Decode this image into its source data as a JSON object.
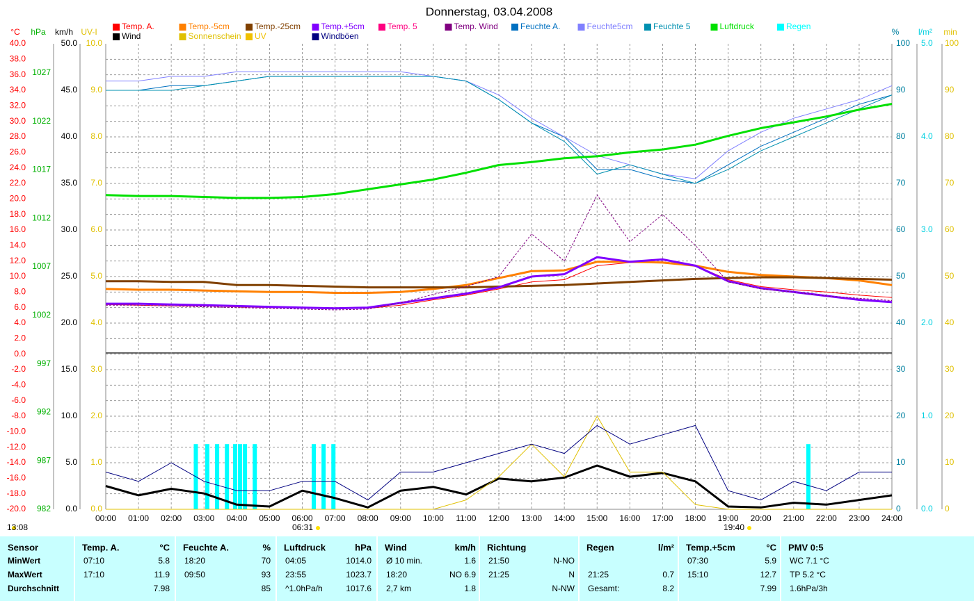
{
  "chart_data": {
    "type": "line",
    "title": "Donnerstag, 03.04.2008",
    "grid": true,
    "annotations": [
      "13:08",
      "06:31",
      "19:40"
    ],
    "x": [
      0,
      1,
      2,
      3,
      4,
      5,
      6,
      7,
      8,
      9,
      10,
      11,
      12,
      13,
      14,
      15,
      16,
      17,
      18,
      19,
      20,
      21,
      22,
      23,
      24
    ],
    "xlim": [
      0,
      24
    ],
    "xticks": [
      {
        "value": 0,
        "label": "00:00"
      },
      {
        "value": 1,
        "label": "01:00"
      },
      {
        "value": 2,
        "label": "02:00"
      },
      {
        "value": 3,
        "label": "03:00"
      },
      {
        "value": 4,
        "label": "04:00"
      },
      {
        "value": 5,
        "label": "05:00"
      },
      {
        "value": 6,
        "label": "06:00"
      },
      {
        "value": 7,
        "label": "07:00"
      },
      {
        "value": 8,
        "label": "08:00"
      },
      {
        "value": 9,
        "label": "09:00"
      },
      {
        "value": 10,
        "label": "10:00"
      },
      {
        "value": 11,
        "label": "11:00"
      },
      {
        "value": 12,
        "label": "12:00"
      },
      {
        "value": 13,
        "label": "13:00"
      },
      {
        "value": 14,
        "label": "14:00"
      },
      {
        "value": 15,
        "label": "15:00"
      },
      {
        "value": 16,
        "label": "16:00"
      },
      {
        "value": 17,
        "label": "17:00"
      },
      {
        "value": 18,
        "label": "18:00"
      },
      {
        "value": 19,
        "label": "19:00"
      },
      {
        "value": 20,
        "label": "20:00"
      },
      {
        "value": 21,
        "label": "21:00"
      },
      {
        "value": 22,
        "label": "22:00"
      },
      {
        "value": 23,
        "label": "23:00"
      },
      {
        "value": 24,
        "label": "24:00"
      }
    ],
    "axes": [
      {
        "label": "°C",
        "color": "#ff0000",
        "lim": [
          -20,
          40
        ],
        "ticks": [
          {
            "value": -20,
            "label": "-20.0"
          },
          {
            "value": -18,
            "label": "-18.0"
          },
          {
            "value": -16,
            "label": "-16.0"
          },
          {
            "value": -14,
            "label": "-14.0"
          },
          {
            "value": -12,
            "label": "-12.0"
          },
          {
            "value": -10,
            "label": "-10.0"
          },
          {
            "value": -8,
            "label": "-8.0"
          },
          {
            "value": -6,
            "label": "-6.0"
          },
          {
            "value": -4,
            "label": "-4.0"
          },
          {
            "value": -2,
            "label": "-2.0"
          },
          {
            "value": 0,
            "label": "0.0"
          },
          {
            "value": 2,
            "label": "2.0"
          },
          {
            "value": 4,
            "label": "4.0"
          },
          {
            "value": 6,
            "label": "6.0"
          },
          {
            "value": 8,
            "label": "8.0"
          },
          {
            "value": 10,
            "label": "10.0"
          },
          {
            "value": 12,
            "label": "12.0"
          },
          {
            "value": 14,
            "label": "14.0"
          },
          {
            "value": 16,
            "label": "16.0"
          },
          {
            "value": 18,
            "label": "18.0"
          },
          {
            "value": 20,
            "label": "20.0"
          },
          {
            "value": 22,
            "label": "22.0"
          },
          {
            "value": 24,
            "label": "24.0"
          },
          {
            "value": 26,
            "label": "26.0"
          },
          {
            "value": 28,
            "label": "28.0"
          },
          {
            "value": 30,
            "label": "30.0"
          },
          {
            "value": 32,
            "label": "32.0"
          },
          {
            "value": 34,
            "label": "34.0"
          },
          {
            "value": 36,
            "label": "36.0"
          },
          {
            "value": 38,
            "label": "38.0"
          },
          {
            "value": 40,
            "label": "40.0"
          }
        ]
      },
      {
        "label": "hPa",
        "color": "#00b000",
        "lim": [
          982,
          1030
        ],
        "ticks": [
          982,
          987,
          992,
          997,
          1002,
          1007,
          1012,
          1017,
          1022,
          1027
        ]
      },
      {
        "label": "km/h",
        "color": "#000000",
        "lim": [
          0,
          50
        ],
        "ticks": [
          {
            "value": 0,
            "label": "0.0"
          },
          {
            "value": 5,
            "label": "5.0"
          },
          {
            "value": 10,
            "label": "10.0"
          },
          {
            "value": 15,
            "label": "15.0"
          },
          {
            "value": 20,
            "label": "20.0"
          },
          {
            "value": 25,
            "label": "25.0"
          },
          {
            "value": 30,
            "label": "30.0"
          },
          {
            "value": 35,
            "label": "35.0"
          },
          {
            "value": 40,
            "label": "40.0"
          },
          {
            "value": 45,
            "label": "45.0"
          },
          {
            "value": 50,
            "label": "50.0"
          }
        ]
      },
      {
        "label": "UV-I",
        "color": "#e0c000",
        "lim": [
          0,
          10
        ],
        "ticks": [
          {
            "value": 0,
            "label": "0.0"
          },
          {
            "value": 1,
            "label": "1.0"
          },
          {
            "value": 2,
            "label": "2.0"
          },
          {
            "value": 3,
            "label": "3.0"
          },
          {
            "value": 4,
            "label": "4.0"
          },
          {
            "value": 5,
            "label": "5.0"
          },
          {
            "value": 6,
            "label": "6.0"
          },
          {
            "value": 7,
            "label": "7.0"
          },
          {
            "value": 8,
            "label": "8.0"
          },
          {
            "value": 9,
            "label": "9.0"
          },
          {
            "value": 10,
            "label": "10.0"
          }
        ]
      },
      {
        "label": "%",
        "color": "#0080a0",
        "lim": [
          0,
          100
        ],
        "ticks": [
          0,
          10,
          20,
          30,
          40,
          50,
          60,
          70,
          80,
          90,
          100
        ]
      },
      {
        "label": "l/m²",
        "color": "#00d0e0",
        "lim": [
          0,
          5
        ],
        "ticks": [
          {
            "value": 0,
            "label": "0.0"
          },
          {
            "value": 1,
            "label": "1.0"
          },
          {
            "value": 2,
            "label": "2.0"
          },
          {
            "value": 3,
            "label": "3.0"
          },
          {
            "value": 4,
            "label": "4.0"
          },
          {
            "value": 5,
            "label": "5.0"
          }
        ]
      },
      {
        "label": "min",
        "color": "#e0c000",
        "lim": [
          0,
          100
        ],
        "ticks": [
          0,
          10,
          20,
          30,
          40,
          50,
          60,
          70,
          80,
          90,
          100
        ]
      }
    ],
    "series": [
      {
        "name": "Temp. A.",
        "color": "#ff0000",
        "axis": 0,
        "style": "line",
        "values": [
          6.4,
          6.3,
          6.2,
          6.2,
          6.1,
          6.0,
          6.0,
          5.9,
          5.9,
          6.3,
          7.0,
          7.6,
          8.4,
          9.3,
          9.6,
          11.4,
          11.8,
          11.9,
          11.4,
          9.6,
          8.7,
          8.3,
          8.0,
          7.6,
          7.3
        ]
      },
      {
        "name": "Temp.-5cm",
        "color": "#ff8000",
        "axis": 0,
        "style": "thick",
        "values": [
          8.4,
          8.3,
          8.3,
          8.2,
          8.1,
          8.0,
          8.0,
          7.9,
          7.9,
          8.0,
          8.4,
          8.9,
          9.8,
          10.7,
          10.8,
          11.9,
          11.9,
          11.8,
          11.4,
          10.6,
          10.2,
          10.0,
          9.8,
          9.5,
          8.9
        ]
      },
      {
        "name": "Temp.-25cm",
        "color": "#804000",
        "axis": 0,
        "style": "thick",
        "values": [
          9.4,
          9.4,
          9.3,
          9.3,
          8.9,
          8.9,
          8.8,
          8.7,
          8.6,
          8.6,
          8.6,
          8.6,
          8.7,
          8.8,
          8.9,
          9.1,
          9.3,
          9.5,
          9.7,
          9.8,
          9.9,
          9.9,
          9.8,
          9.7,
          9.6
        ]
      },
      {
        "name": "Temp.+5cm",
        "color": "#8000ff",
        "axis": 0,
        "style": "thick",
        "values": [
          6.5,
          6.5,
          6.4,
          6.3,
          6.2,
          6.1,
          6.0,
          5.9,
          6.0,
          6.6,
          7.2,
          7.8,
          8.6,
          10.0,
          10.3,
          12.5,
          11.9,
          12.2,
          11.4,
          9.4,
          8.5,
          8.0,
          7.5,
          7.0,
          6.7
        ]
      },
      {
        "name": "Temp. 5",
        "color": "#ff0080",
        "axis": 0,
        "style": "line",
        "values": [
          null,
          null,
          null,
          null,
          null,
          null,
          null,
          null,
          null,
          null,
          null,
          null,
          null,
          null,
          null,
          null,
          null,
          null,
          null,
          null,
          null,
          null,
          null,
          null,
          null
        ]
      },
      {
        "name": "Temp. Wind",
        "color": "#800080",
        "axis": 0,
        "style": "dashed",
        "values": [
          6.3,
          6.3,
          6.2,
          6.1,
          6.0,
          5.9,
          5.8,
          5.7,
          5.8,
          6.6,
          7.7,
          8.7,
          10.0,
          15.5,
          12.0,
          20.5,
          14.5,
          18.0,
          14.0,
          9.3,
          8.4,
          8.0,
          7.5,
          7.2,
          6.9
        ]
      },
      {
        "name": "Feuchte A.",
        "color": "#0070c0",
        "axis": 4,
        "style": "line",
        "values": [
          90,
          90,
          91,
          91,
          92,
          93,
          93,
          93,
          93,
          93,
          93,
          92,
          88,
          83,
          80,
          73,
          73,
          71,
          70,
          74,
          78,
          81,
          84,
          87,
          89
        ]
      },
      {
        "name": "Feuchte5cm",
        "color": "#8080ff",
        "axis": 4,
        "style": "line",
        "values": [
          92,
          92,
          93,
          93,
          94,
          94,
          94,
          94,
          94,
          94,
          93,
          92,
          89,
          84,
          80,
          76,
          74,
          72,
          71,
          77,
          81,
          84,
          86,
          88,
          91
        ]
      },
      {
        "name": "Feuchte 5",
        "color": "#0090b0",
        "axis": 4,
        "style": "line",
        "values": [
          90,
          90,
          90,
          91,
          92,
          93,
          93,
          93,
          93,
          93,
          93,
          92,
          88,
          83,
          79,
          72,
          74,
          72,
          70,
          73,
          77,
          80,
          83,
          86,
          89
        ]
      },
      {
        "name": "Luftdruck",
        "color": "#00e000",
        "axis": 1,
        "style": "thick",
        "values": [
          1014.4,
          1014.3,
          1014.3,
          1014.2,
          1014.1,
          1014.1,
          1014.2,
          1014.5,
          1015.0,
          1015.5,
          1016.0,
          1016.7,
          1017.5,
          1017.8,
          1018.2,
          1018.4,
          1018.8,
          1019.1,
          1019.6,
          1020.5,
          1021.3,
          1021.9,
          1022.5,
          1023.2,
          1023.8
        ]
      },
      {
        "name": "Regen",
        "color": "#00ffff",
        "axis": 5,
        "style": "bars",
        "x": [
          2.75,
          3.1,
          3.4,
          3.7,
          3.95,
          4.1,
          4.25,
          4.55,
          6.35,
          6.65,
          6.95,
          21.45
        ],
        "values": [
          0.7,
          0.7,
          0.7,
          0.7,
          0.7,
          0.7,
          0.7,
          0.7,
          0.7,
          0.7,
          0.7,
          0.7
        ]
      },
      {
        "name": "Wind",
        "color": "#000000",
        "axis": 2,
        "style": "thick",
        "values": [
          2.5,
          1.5,
          2.2,
          1.7,
          0.5,
          0.3,
          2.0,
          1.2,
          0.2,
          2.0,
          2.4,
          1.6,
          3.3,
          3.0,
          3.4,
          4.7,
          3.5,
          3.9,
          3.0,
          0.3,
          0.2,
          0.7,
          0.5,
          1.0,
          1.5
        ]
      },
      {
        "name": "Sonnenschein",
        "color": "#e0c000",
        "axis": 6,
        "style": "line",
        "values": [
          0,
          0,
          0,
          0,
          0,
          0,
          0,
          0,
          0,
          0,
          0,
          2,
          7,
          14,
          7,
          20,
          8,
          8,
          1,
          0,
          0,
          0,
          0,
          0,
          0
        ]
      },
      {
        "name": "UV",
        "color": "#f0c000",
        "axis": 3,
        "style": "line",
        "values": [
          null,
          null,
          null,
          null,
          null,
          null,
          null,
          null,
          null,
          null,
          null,
          null,
          null,
          null,
          null,
          null,
          null,
          null,
          null,
          null,
          null,
          null,
          null,
          null,
          null
        ]
      },
      {
        "name": "Windböen",
        "color": "#000080",
        "axis": 2,
        "style": "line",
        "values": [
          4,
          3,
          5,
          3,
          2,
          2,
          3,
          3,
          1,
          4,
          4,
          5,
          6,
          7,
          6,
          9,
          7,
          8,
          9,
          2,
          1,
          3,
          2,
          4,
          4
        ]
      }
    ]
  },
  "table": {
    "columns": [
      {
        "title": "Sensor"
      },
      {
        "title": "Temp. A.",
        "unit": "°C"
      },
      {
        "title": "Feuchte A.",
        "unit": "%"
      },
      {
        "title": "Luftdruck",
        "unit": "hPa"
      },
      {
        "title": "Wind",
        "unit": "km/h"
      },
      {
        "title": "Richtung"
      },
      {
        "title": "Regen",
        "unit": "l/m²"
      },
      {
        "title": "Temp.+5cm",
        "unit": "°C"
      },
      {
        "title": "PMV 0:5"
      }
    ],
    "rows": [
      {
        "label": "MinWert",
        "cells": [
          [
            "07:10",
            "5.8"
          ],
          [
            "18:20",
            "70"
          ],
          [
            "04:05",
            "1014.0"
          ],
          [
            "Ø 10 min.",
            "1.6"
          ],
          [
            "21:50",
            "N-NO"
          ],
          [
            null,
            null
          ],
          [
            "07:30",
            "5.9"
          ],
          [
            "WC 7.1 °C",
            null
          ]
        ]
      },
      {
        "label": "MaxWert",
        "cells": [
          [
            "17:10",
            "11.9"
          ],
          [
            "09:50",
            "93"
          ],
          [
            "23:55",
            "1023.7"
          ],
          [
            "18:20",
            "NO 6.9"
          ],
          [
            "21:25",
            "N"
          ],
          [
            "21:25",
            "0.7"
          ],
          [
            "15:10",
            "12.7"
          ],
          [
            "TP 5.2 °C",
            null
          ]
        ]
      },
      {
        "label": "Durchschnitt",
        "cells": [
          [
            null,
            "7.98"
          ],
          [
            null,
            "85"
          ],
          [
            "^1.0hPa/h",
            "1017.6"
          ],
          [
            "2,7 km",
            "1.8"
          ],
          [
            null,
            "N-NW"
          ],
          [
            "Gesamt:",
            "8.2"
          ],
          [
            null,
            "7.99"
          ],
          [
            "1.6hPa/3h",
            null
          ]
        ]
      }
    ]
  }
}
